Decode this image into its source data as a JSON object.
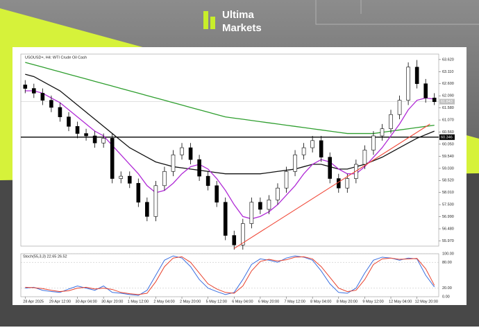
{
  "brand": {
    "line1": "Ultima",
    "line2": "Markets"
  },
  "chart_data": {
    "type": "candlestick",
    "title": "USOUSD+, H4: WTI Crude Oil Cash",
    "categories": [
      "28 Apr 2025",
      null,
      null,
      "29 Apr 12:00",
      null,
      null,
      "30 Apr 04:00",
      null,
      null,
      "30 Apr 20:00",
      null,
      null,
      "1 May 12:00",
      null,
      null,
      "2 May 04:00",
      null,
      null,
      "2 May 20:00",
      null,
      null,
      "5 May 12:00",
      null,
      null,
      "6 May 04:00",
      null,
      null,
      "6 May 20:00",
      null,
      null,
      "7 May 12:00",
      null,
      null,
      "8 May 04:00",
      null,
      null,
      "8 May 20:00",
      null,
      null,
      "9 May 12:00",
      null,
      null,
      "12 May 04:00",
      null,
      null,
      "12 May 20:00",
      null,
      null
    ],
    "open": [
      62.55,
      62.4,
      62.2,
      61.9,
      61.6,
      61.2,
      60.8,
      60.5,
      60.4,
      60.1,
      60.3,
      58.6,
      58.7,
      58.4,
      57.6,
      57.0,
      58.3,
      58.9,
      59.6,
      59.9,
      59.4,
      58.7,
      58.3,
      57.6,
      56.2,
      55.8,
      56.7,
      57.6,
      57.3,
      57.7,
      58.2,
      58.9,
      59.6,
      59.9,
      60.2,
      59.5,
      58.6,
      58.2,
      58.6,
      59.2,
      59.8,
      60.4,
      60.7,
      61.3,
      61.9,
      63.3,
      62.6,
      62.0
    ],
    "high": [
      62.75,
      62.6,
      62.4,
      62.1,
      61.8,
      61.4,
      61.0,
      60.7,
      60.6,
      60.5,
      60.5,
      58.9,
      58.9,
      58.6,
      57.8,
      58.5,
      59.1,
      59.8,
      60.1,
      60.1,
      59.6,
      58.9,
      58.5,
      57.8,
      56.4,
      56.9,
      57.8,
      57.8,
      57.9,
      58.4,
      59.1,
      59.8,
      60.1,
      60.4,
      60.4,
      59.7,
      58.8,
      58.8,
      59.4,
      60.0,
      60.6,
      60.9,
      61.5,
      62.1,
      63.5,
      63.6,
      62.8,
      62.2
    ],
    "low": [
      62.2,
      62.0,
      61.7,
      61.4,
      61.0,
      60.6,
      60.3,
      60.2,
      59.9,
      59.9,
      58.4,
      58.4,
      58.2,
      57.4,
      56.8,
      56.8,
      58.1,
      58.7,
      59.4,
      59.2,
      58.5,
      58.1,
      57.4,
      56.0,
      55.6,
      55.6,
      56.5,
      57.1,
      57.1,
      57.5,
      58.0,
      58.7,
      59.4,
      59.7,
      59.3,
      58.4,
      58.0,
      58.0,
      58.4,
      59.0,
      59.6,
      60.2,
      60.5,
      61.1,
      61.7,
      62.4,
      61.8,
      61.7
    ],
    "close": [
      62.4,
      62.2,
      61.9,
      61.6,
      61.2,
      60.8,
      60.5,
      60.4,
      60.1,
      60.3,
      58.6,
      58.7,
      58.4,
      57.6,
      57.0,
      58.3,
      58.9,
      59.6,
      59.9,
      59.4,
      58.7,
      58.3,
      57.6,
      56.2,
      55.8,
      56.7,
      57.6,
      57.3,
      57.7,
      58.2,
      58.9,
      59.6,
      59.9,
      60.2,
      59.5,
      58.6,
      58.2,
      58.6,
      59.2,
      59.8,
      60.4,
      60.7,
      61.3,
      61.9,
      63.3,
      62.6,
      62.0,
      61.84
    ],
    "up_color": "#ffffff",
    "down_color": "#000000",
    "lines": [
      {
        "color": "#2e9e2e",
        "values": [
          63.5,
          63.4,
          63.3,
          63.2,
          63.1,
          63.0,
          62.9,
          62.8,
          62.7,
          62.6,
          62.5,
          62.4,
          62.3,
          62.2,
          62.1,
          62.0,
          61.9,
          61.8,
          61.7,
          61.6,
          61.5,
          61.4,
          61.3,
          61.2,
          61.15,
          61.1,
          61.05,
          61.0,
          60.95,
          60.9,
          60.85,
          60.8,
          60.75,
          60.7,
          60.65,
          60.6,
          60.55,
          60.5,
          60.5,
          60.5,
          60.5,
          60.55,
          60.6,
          60.65,
          60.7,
          60.75,
          60.8,
          60.85
        ]
      },
      {
        "color": "#111111",
        "values": [
          63.0,
          62.9,
          62.7,
          62.5,
          62.3,
          62.0,
          61.7,
          61.4,
          61.1,
          60.8,
          60.5,
          60.2,
          59.9,
          59.7,
          59.5,
          59.3,
          59.2,
          59.1,
          59.05,
          59.0,
          58.95,
          58.9,
          58.85,
          58.8,
          58.8,
          58.8,
          58.8,
          58.8,
          58.85,
          58.9,
          58.95,
          59.0,
          59.1,
          59.2,
          59.2,
          59.1,
          59.0,
          59.0,
          59.1,
          59.2,
          59.35,
          59.5,
          59.7,
          59.9,
          60.1,
          60.3,
          60.45,
          60.6
        ]
      },
      {
        "color": "#b02ad6",
        "values": [
          62.3,
          62.3,
          62.2,
          62.0,
          61.8,
          61.5,
          61.2,
          60.9,
          60.6,
          60.4,
          60.0,
          59.6,
          59.2,
          58.8,
          58.3,
          58.0,
          58.1,
          58.4,
          58.8,
          59.1,
          59.2,
          59.0,
          58.6,
          58.1,
          57.5,
          57.0,
          56.9,
          57.0,
          57.2,
          57.5,
          57.9,
          58.3,
          58.8,
          59.2,
          59.4,
          59.3,
          59.0,
          58.8,
          58.8,
          59.1,
          59.5,
          59.9,
          60.4,
          60.9,
          61.5,
          61.9,
          62.0,
          61.95
        ]
      }
    ],
    "ylim": [
      55.75,
      63.85
    ],
    "yticks": [
      {
        "value": 63.62,
        "label": "63.620"
      },
      {
        "value": 63.11,
        "label": "63.110"
      },
      {
        "value": 62.6,
        "label": "62.600"
      },
      {
        "value": 62.09,
        "label": "62.090"
      },
      {
        "value": 61.58,
        "label": "61.580"
      },
      {
        "value": 61.07,
        "label": "61.070"
      },
      {
        "value": 60.56,
        "label": "60.560"
      },
      {
        "value": 60.05,
        "label": "60.050"
      },
      {
        "value": 59.54,
        "label": "59.540"
      },
      {
        "value": 59.03,
        "label": "59.030"
      },
      {
        "value": 58.52,
        "label": "58.520"
      },
      {
        "value": 58.01,
        "label": "58.010"
      },
      {
        "value": 57.5,
        "label": "57.500"
      },
      {
        "value": 56.99,
        "label": "56.990"
      },
      {
        "value": 56.48,
        "label": "56.480"
      },
      {
        "value": 55.97,
        "label": "55.970"
      }
    ],
    "horizontal_line": {
      "value": 60.346,
      "label": "60.346",
      "color": "#000000"
    },
    "current_price": {
      "value": 61.843,
      "label": "61.843",
      "color": "#c0c0c0"
    },
    "trendline": {
      "color": "#f04a3a",
      "x": [
        24,
        46.5
      ],
      "y": [
        55.65,
        60.9
      ]
    },
    "indicator": {
      "title": "Stoch(55,3,3) 22.65 26.52",
      "ylim": [
        0,
        100
      ],
      "yticks": [
        {
          "value": 100,
          "label": "100.00"
        },
        {
          "value": 80,
          "label": "80.00"
        },
        {
          "value": 20,
          "label": "20.00"
        },
        {
          "value": 0,
          "label": "0.00"
        }
      ],
      "series": [
        {
          "color": "#3a6fe0",
          "values": [
            20,
            22,
            15,
            12,
            10,
            18,
            25,
            20,
            15,
            25,
            10,
            8,
            5,
            3,
            15,
            50,
            85,
            95,
            90,
            70,
            40,
            20,
            12,
            5,
            10,
            40,
            75,
            88,
            85,
            80,
            90,
            95,
            92,
            85,
            60,
            30,
            10,
            8,
            20,
            55,
            85,
            92,
            90,
            85,
            90,
            88,
            50,
            22.65
          ]
        },
        {
          "color": "#e8412c",
          "values": [
            22,
            21,
            19,
            15,
            12,
            14,
            20,
            22,
            18,
            20,
            17,
            10,
            7,
            5,
            8,
            35,
            70,
            90,
            93,
            80,
            55,
            30,
            18,
            10,
            8,
            25,
            60,
            82,
            87,
            83,
            86,
            92,
            93,
            88,
            70,
            45,
            20,
            12,
            15,
            40,
            75,
            88,
            90,
            87,
            88,
            89,
            65,
            26.52
          ]
        }
      ]
    }
  }
}
